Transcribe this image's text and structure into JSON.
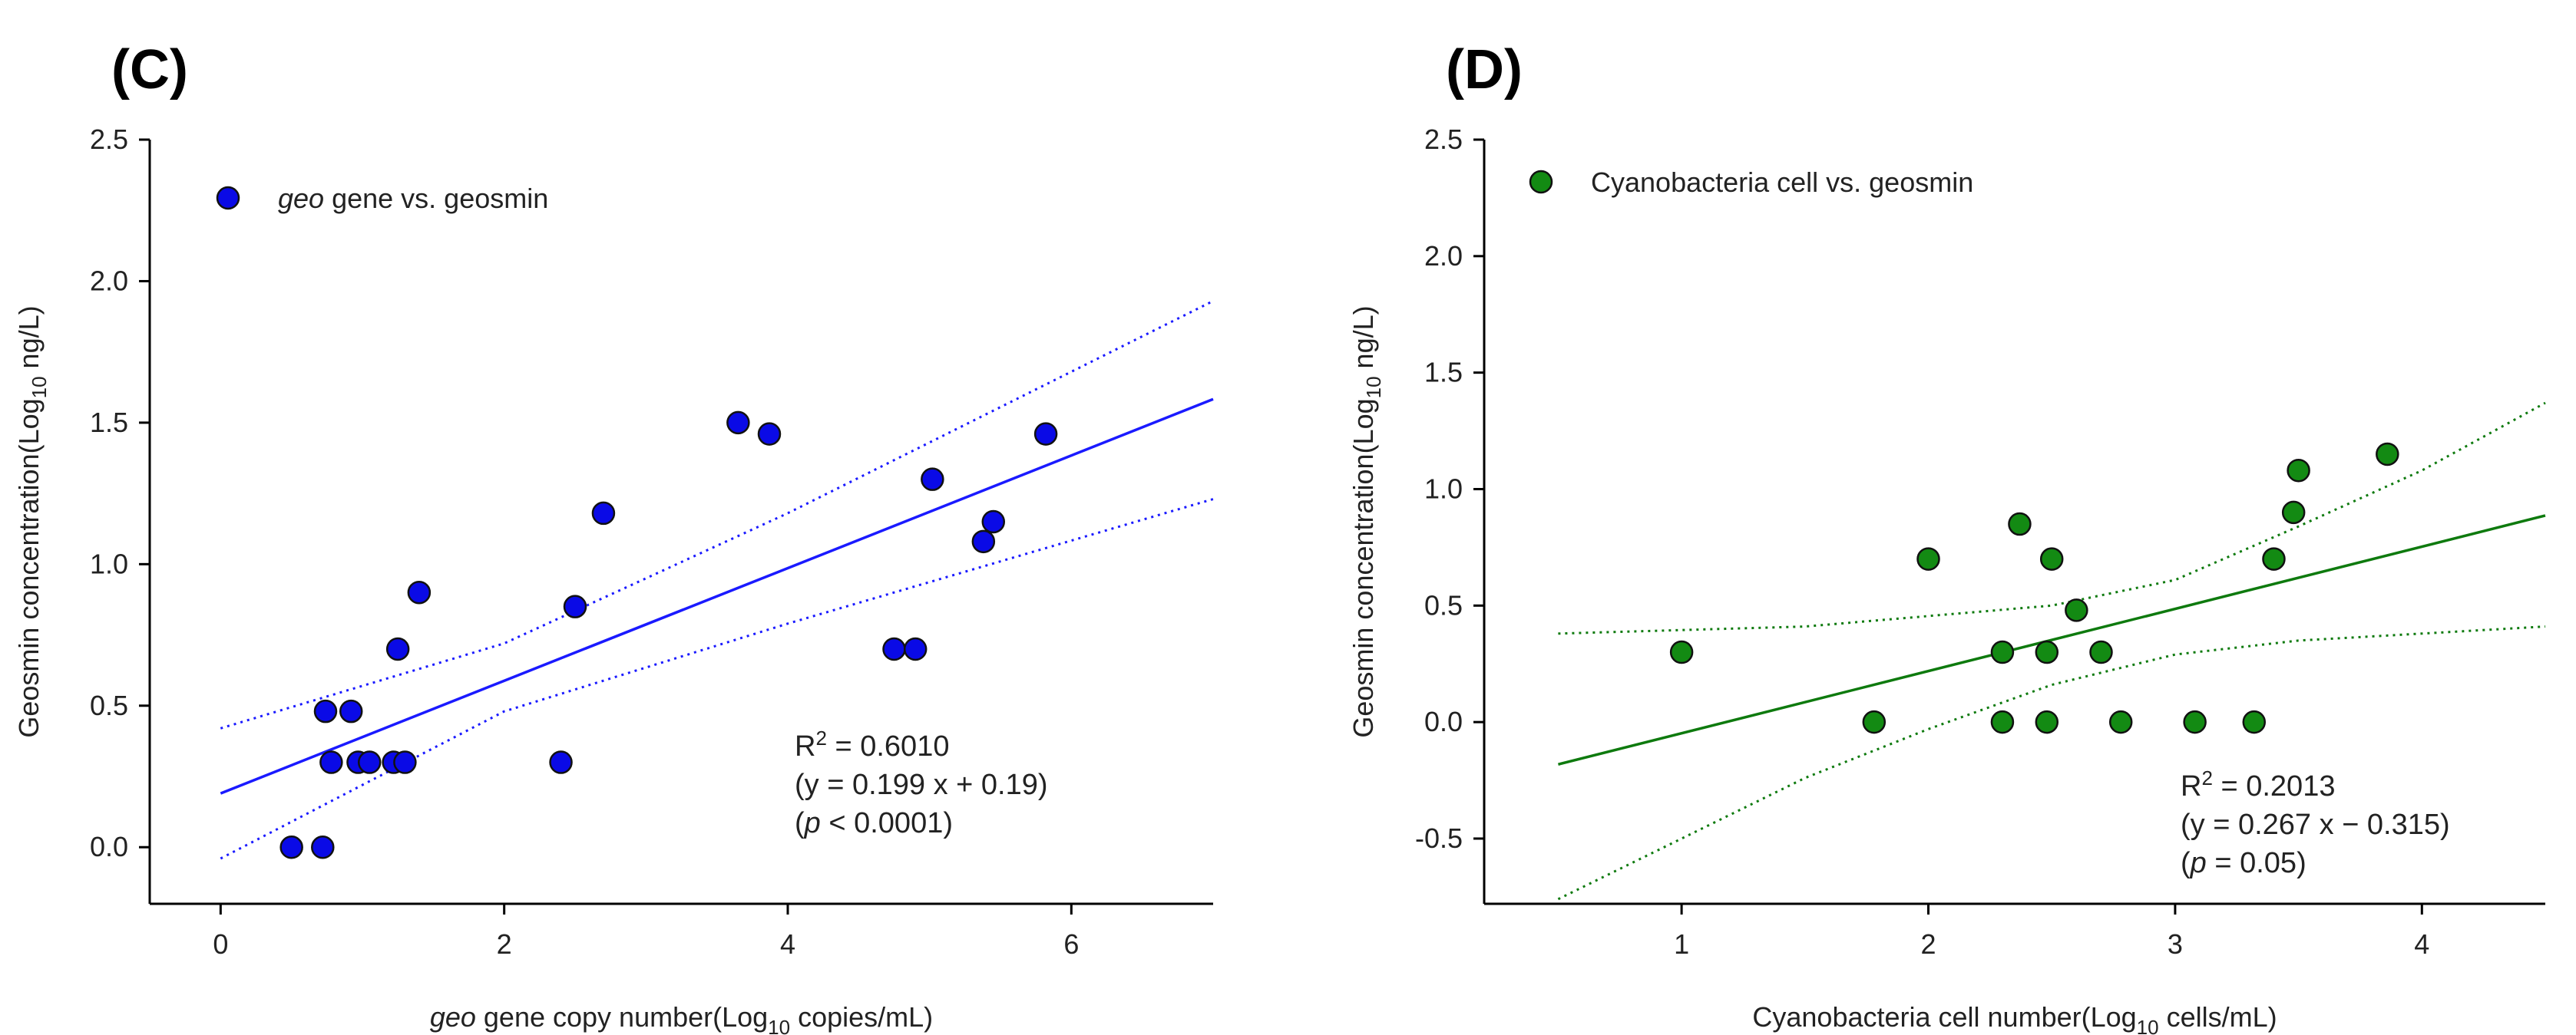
{
  "chart_data": [
    {
      "panel": "(C)",
      "type": "scatter",
      "xlabel": {
        "pre_italic": "geo",
        "main": " gene copy number(Log",
        "sub": "10",
        "post": " copies/mL)"
      },
      "ylabel": {
        "main": "Geosmin concentration(Log",
        "sub": "10",
        "post": " ng/L)"
      },
      "xlim": [
        -0.5,
        7.0
      ],
      "ylim": [
        -0.2,
        2.5
      ],
      "xticks": [
        0,
        2,
        4,
        6
      ],
      "yticks": [
        0.0,
        0.5,
        1.0,
        1.5,
        2.0,
        2.5
      ],
      "ytick_labels": [
        "0.0",
        "0.5",
        "1.0",
        "1.5",
        "2.0",
        "2.5"
      ],
      "xtick_labels": [
        "0",
        "2",
        "4",
        "6"
      ],
      "marker_color": "#0a0ae6",
      "line_color": "#1a1aff",
      "legend": {
        "italic": "geo",
        "text": " gene vs. geosmin"
      },
      "points": [
        {
          "x": 0.5,
          "y": 0.0
        },
        {
          "x": 0.72,
          "y": 0.0
        },
        {
          "x": 0.74,
          "y": 0.48
        },
        {
          "x": 0.78,
          "y": 0.3
        },
        {
          "x": 0.92,
          "y": 0.48
        },
        {
          "x": 0.97,
          "y": 0.3
        },
        {
          "x": 1.05,
          "y": 0.3
        },
        {
          "x": 1.22,
          "y": 0.3
        },
        {
          "x": 1.3,
          "y": 0.3
        },
        {
          "x": 1.25,
          "y": 0.7
        },
        {
          "x": 1.4,
          "y": 0.9
        },
        {
          "x": 2.4,
          "y": 0.3
        },
        {
          "x": 2.5,
          "y": 0.85
        },
        {
          "x": 2.7,
          "y": 1.18
        },
        {
          "x": 3.65,
          "y": 1.5
        },
        {
          "x": 3.87,
          "y": 1.46
        },
        {
          "x": 4.75,
          "y": 0.7
        },
        {
          "x": 4.9,
          "y": 0.7
        },
        {
          "x": 5.02,
          "y": 1.3
        },
        {
          "x": 5.38,
          "y": 1.08
        },
        {
          "x": 5.45,
          "y": 1.15
        },
        {
          "x": 5.82,
          "y": 1.46
        }
      ],
      "fit": {
        "slope": 0.199,
        "intercept": 0.19,
        "x_start": 0,
        "x_end": 7.0
      },
      "ci_upper": [
        {
          "x": 0,
          "y": 0.42
        },
        {
          "x": 2,
          "y": 0.72
        },
        {
          "x": 4,
          "y": 1.18
        },
        {
          "x": 7.0,
          "y": 1.93
        }
      ],
      "ci_lower": [
        {
          "x": 0,
          "y": -0.04
        },
        {
          "x": 2,
          "y": 0.48
        },
        {
          "x": 4,
          "y": 0.79
        },
        {
          "x": 7.0,
          "y": 1.23
        }
      ],
      "stats": {
        "r2_label": "R",
        "r2_sup": "2",
        "r2_value": " = 0.6010",
        "equation": "(y = 0.199 x + 0.19)",
        "p_open": "(",
        "p_symbol": "p",
        "p_text": " < 0.0001)"
      }
    },
    {
      "panel": "(D)",
      "type": "scatter",
      "xlabel": {
        "pre_italic": "",
        "main": "Cyanobacteria cell number(Log",
        "sub": "10",
        "post": " cells/mL)"
      },
      "ylabel": {
        "main": "Geosmin concentration(Log",
        "sub": "10",
        "post": " ng/L)"
      },
      "xlim": [
        0.2,
        4.5
      ],
      "ylim": [
        -0.78,
        2.5
      ],
      "xticks": [
        1,
        2,
        3,
        4
      ],
      "yticks": [
        -0.5,
        0.0,
        0.5,
        1.0,
        1.5,
        2.0,
        2.5
      ],
      "ytick_labels": [
        "-0.5",
        "0.0",
        "0.5",
        "1.0",
        "1.5",
        "2.0",
        "2.5"
      ],
      "xtick_labels": [
        "1",
        "2",
        "3",
        "4"
      ],
      "marker_color": "#138a13",
      "line_color": "#0e7a0e",
      "legend": {
        "italic": "",
        "text": "Cyanobacteria cell vs. geosmin"
      },
      "points": [
        {
          "x": 1.0,
          "y": 0.3
        },
        {
          "x": 1.78,
          "y": 0.0
        },
        {
          "x": 2.0,
          "y": 0.7
        },
        {
          "x": 2.3,
          "y": 0.3
        },
        {
          "x": 2.3,
          "y": 0.0
        },
        {
          "x": 2.37,
          "y": 0.85
        },
        {
          "x": 2.48,
          "y": 0.3
        },
        {
          "x": 2.48,
          "y": 0.0
        },
        {
          "x": 2.5,
          "y": 0.7
        },
        {
          "x": 2.6,
          "y": 0.48
        },
        {
          "x": 2.7,
          "y": 0.3
        },
        {
          "x": 2.78,
          "y": 0.0
        },
        {
          "x": 3.08,
          "y": 0.0
        },
        {
          "x": 3.32,
          "y": 0.0
        },
        {
          "x": 3.4,
          "y": 0.7
        },
        {
          "x": 3.48,
          "y": 0.9
        },
        {
          "x": 3.5,
          "y": 1.08
        },
        {
          "x": 3.86,
          "y": 1.15
        }
      ],
      "fit": {
        "slope": 0.267,
        "intercept": -0.315,
        "x_start": 0.5,
        "x_end": 4.5
      },
      "ci_upper": [
        {
          "x": 0.5,
          "y": 0.38
        },
        {
          "x": 1.5,
          "y": 0.41
        },
        {
          "x": 2.5,
          "y": 0.5
        },
        {
          "x": 3.0,
          "y": 0.61
        },
        {
          "x": 3.5,
          "y": 0.84
        },
        {
          "x": 4.0,
          "y": 1.08
        },
        {
          "x": 4.5,
          "y": 1.37
        }
      ],
      "ci_lower": [
        {
          "x": 0.5,
          "y": -0.76
        },
        {
          "x": 1.0,
          "y": -0.5
        },
        {
          "x": 1.5,
          "y": -0.24
        },
        {
          "x": 2.0,
          "y": -0.03
        },
        {
          "x": 2.5,
          "y": 0.16
        },
        {
          "x": 3.0,
          "y": 0.29
        },
        {
          "x": 3.5,
          "y": 0.35
        },
        {
          "x": 4.0,
          "y": 0.38
        },
        {
          "x": 4.5,
          "y": 0.41
        }
      ],
      "stats": {
        "r2_label": "R",
        "r2_sup": "2",
        "r2_value": " = 0.2013",
        "equation": "(y = 0.267 x − 0.315)",
        "p_open": "(",
        "p_symbol": "p",
        "p_text": " = 0.05)"
      }
    }
  ]
}
